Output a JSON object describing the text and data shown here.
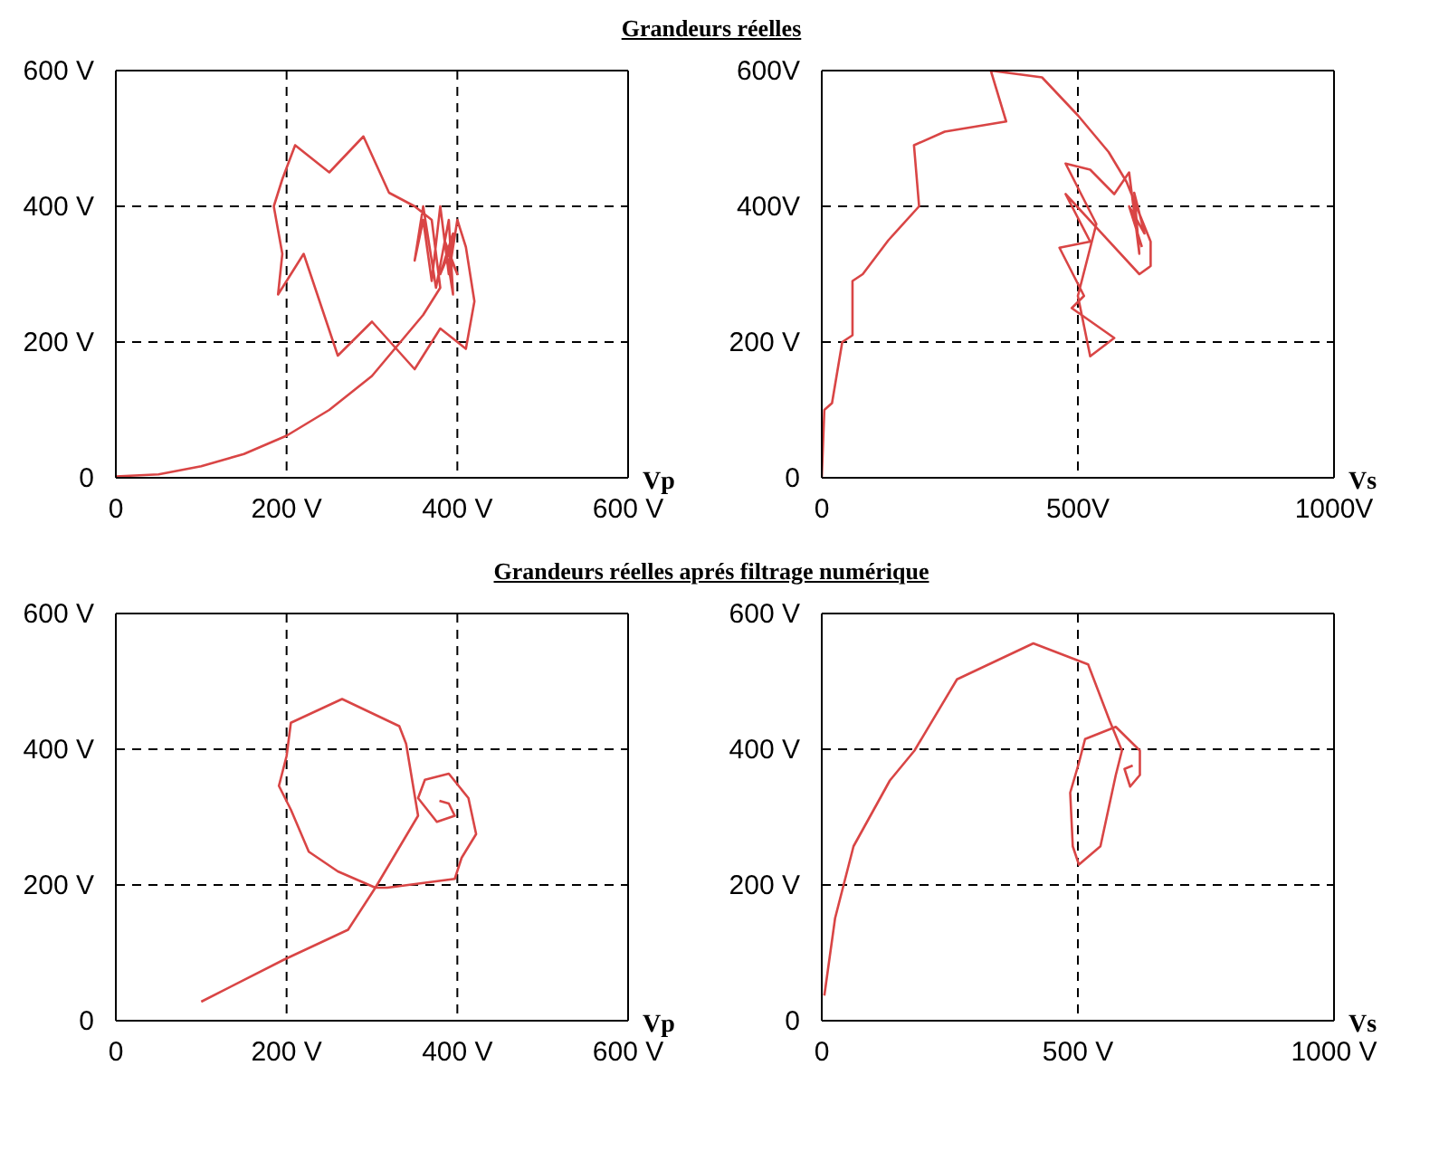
{
  "chart_data": [
    {
      "type": "line",
      "title": "Grandeurs réelles",
      "xlabel": "Vp",
      "xlim": [
        0,
        600
      ],
      "ylim": [
        0,
        600
      ],
      "xticks": [
        {
          "value": 0,
          "label": "0"
        },
        {
          "value": 200,
          "label": "200 V"
        },
        {
          "value": 400,
          "label": "400 V"
        },
        {
          "value": 600,
          "label": "600 V"
        }
      ],
      "yticks": [
        {
          "value": 0,
          "label": "0"
        },
        {
          "value": 200,
          "label": "200 V"
        },
        {
          "value": 400,
          "label": "400 V"
        },
        {
          "value": 600,
          "label": "600 V"
        }
      ],
      "grid": true,
      "line_style": "solid",
      "series": [
        {
          "color": "#d94545",
          "x": [
            0,
            50,
            100,
            150,
            200,
            250,
            300,
            330,
            360,
            380,
            370,
            350,
            320,
            290,
            250,
            210,
            195,
            185,
            195,
            190,
            220,
            260,
            300,
            350,
            380,
            410,
            420,
            410,
            400,
            390,
            380,
            370,
            360,
            350,
            360,
            375,
            390,
            395,
            385,
            400,
            390,
            380,
            395,
            390
          ],
          "values": [
            2,
            5,
            17,
            35,
            62,
            100,
            150,
            195,
            240,
            280,
            380,
            400,
            420,
            503,
            450,
            490,
            440,
            400,
            330,
            270,
            330,
            180,
            230,
            160,
            220,
            190,
            260,
            340,
            380,
            300,
            400,
            290,
            380,
            320,
            400,
            280,
            380,
            270,
            350,
            300,
            330,
            300,
            360,
            310
          ]
        }
      ]
    },
    {
      "type": "line",
      "xlabel": "Vs",
      "xlim": [
        0,
        1000
      ],
      "ylim": [
        0,
        600
      ],
      "xticks": [
        {
          "value": 0,
          "label": "0"
        },
        {
          "value": 500,
          "label": "500V"
        },
        {
          "value": 1000,
          "label": "1000V"
        }
      ],
      "yticks": [
        {
          "value": 0,
          "label": "0"
        },
        {
          "value": 200,
          "label": "200 V"
        },
        {
          "value": 400,
          "label": "400V"
        },
        {
          "value": 600,
          "label": "600V"
        }
      ],
      "grid": true,
      "line_style": "solid",
      "series": [
        {
          "color": "#d94545",
          "x": [
            0,
            5,
            20,
            40,
            60,
            60,
            80,
            130,
            190,
            180,
            240,
            360,
            330,
            430,
            500,
            560,
            595,
            642,
            642,
            620,
            476,
            524,
            464,
            512,
            488,
            571,
            524,
            500,
            536,
            476,
            524,
            571,
            600,
            620,
            610,
            630,
            600,
            625
          ],
          "values": [
            0,
            100,
            110,
            200,
            210,
            290,
            300,
            350,
            400,
            490,
            510,
            525,
            600,
            590,
            534,
            480,
            436,
            348,
            312,
            300,
            418,
            348,
            339,
            268,
            250,
            206,
            179,
            268,
            374,
            463,
            454,
            418,
            450,
            330,
            420,
            360,
            400,
            340
          ]
        }
      ]
    },
    {
      "type": "line",
      "title": "Grandeurs réelles  aprés filtrage numérique",
      "xlabel": "Vp",
      "xlim": [
        0,
        600
      ],
      "ylim": [
        0,
        600
      ],
      "xticks": [
        {
          "value": 0,
          "label": "0"
        },
        {
          "value": 200,
          "label": "200 V"
        },
        {
          "value": 400,
          "label": "400 V"
        },
        {
          "value": 600,
          "label": "600 V"
        }
      ],
      "yticks": [
        {
          "value": 0,
          "label": "0"
        },
        {
          "value": 200,
          "label": "200 V"
        },
        {
          "value": 400,
          "label": "400 V"
        },
        {
          "value": 600,
          "label": "600 V"
        }
      ],
      "grid": true,
      "line_style": "solid",
      "series": [
        {
          "color": "#d94545",
          "x": [
            100,
            197,
            272,
            304,
            354,
            340,
            332,
            265,
            205,
            200,
            191,
            205,
            226,
            260,
            304,
            318,
            397,
            405,
            422,
            413,
            390,
            362,
            354,
            376,
            397,
            390,
            379
          ],
          "values": [
            28,
            90,
            134,
            196,
            302,
            408,
            434,
            474,
            439,
            390,
            346,
            311,
            249,
            220,
            196,
            196,
            209,
            240,
            275,
            328,
            364,
            355,
            328,
            293,
            302,
            320,
            324
          ]
        }
      ]
    },
    {
      "type": "line",
      "xlabel": "Vs",
      "xlim": [
        0,
        1000
      ],
      "ylim": [
        0,
        600
      ],
      "xticks": [
        {
          "value": 0,
          "label": "0"
        },
        {
          "value": 500,
          "label": "500 V"
        },
        {
          "value": 1000,
          "label": "1000 V"
        }
      ],
      "yticks": [
        {
          "value": 0,
          "label": "0"
        },
        {
          "value": 200,
          "label": "200 V"
        },
        {
          "value": 400,
          "label": "400 V"
        },
        {
          "value": 600,
          "label": "600 V"
        }
      ],
      "grid": true,
      "line_style": "solid",
      "series": [
        {
          "color": "#d94545",
          "x": [
            5,
            26,
            62,
            133,
            181,
            264,
            413,
            520,
            562,
            586,
            574,
            544,
            502,
            490,
            485,
            502,
            514,
            574,
            621,
            621,
            602,
            591,
            607
          ],
          "values": [
            37,
            151,
            257,
            354,
            398,
            503,
            556,
            525,
            442,
            398,
            362,
            257,
            230,
            257,
            336,
            380,
            415,
            433,
            398,
            362,
            345,
            371,
            376
          ]
        }
      ]
    }
  ]
}
